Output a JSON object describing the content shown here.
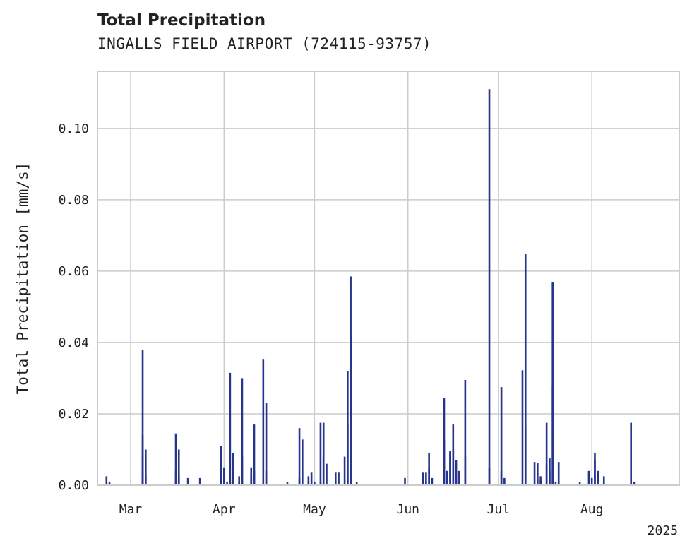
{
  "chart_data": {
    "type": "bar",
    "title": "Total Precipitation",
    "subtitle": "INGALLS FIELD AIRPORT (724115-93757)",
    "ylabel": "Total Precipitation [mm/s]",
    "xlabel": "",
    "year_label": "2025",
    "xlim": [
      "2025-02-18",
      "2025-08-30"
    ],
    "ylim": [
      0,
      0.116
    ],
    "yticks": [
      0.0,
      0.02,
      0.04,
      0.06,
      0.08,
      0.1
    ],
    "ytick_labels": [
      "0.00",
      "0.02",
      "0.04",
      "0.06",
      "0.08",
      "0.10"
    ],
    "xticks": [
      "2025-03-01",
      "2025-04-01",
      "2025-05-01",
      "2025-06-01",
      "2025-07-01",
      "2025-08-01"
    ],
    "xtick_labels": [
      "Mar",
      "Apr",
      "May",
      "Jun",
      "Jul",
      "Aug"
    ],
    "grid": true,
    "color": "#26348b",
    "points": [
      [
        "2025-02-21",
        0.001
      ],
      [
        "2025-02-21",
        0.0025
      ],
      [
        "2025-02-22",
        0.001
      ],
      [
        "2025-03-05",
        0.002
      ],
      [
        "2025-03-05",
        0.008
      ],
      [
        "2025-03-05",
        0.038
      ],
      [
        "2025-03-05",
        0.014
      ],
      [
        "2025-03-06",
        0.01
      ],
      [
        "2025-03-06",
        0.003
      ],
      [
        "2025-03-16",
        0.001
      ],
      [
        "2025-03-16",
        0.004
      ],
      [
        "2025-03-16",
        0.0145
      ],
      [
        "2025-03-17",
        0.01
      ],
      [
        "2025-03-17",
        0.003
      ],
      [
        "2025-03-20",
        0.002
      ],
      [
        "2025-03-24",
        0.002
      ],
      [
        "2025-03-31",
        0.011
      ],
      [
        "2025-04-01",
        0.005
      ],
      [
        "2025-04-02",
        0.001
      ],
      [
        "2025-04-03",
        0.001
      ],
      [
        "2025-04-03",
        0.0315
      ],
      [
        "2025-04-04",
        0.009
      ],
      [
        "2025-04-04",
        0.004
      ],
      [
        "2025-04-04",
        0.003
      ],
      [
        "2025-04-06",
        0.0025
      ],
      [
        "2025-04-06",
        0.001
      ],
      [
        "2025-04-07",
        0.03
      ],
      [
        "2025-04-07",
        0.008
      ],
      [
        "2025-04-07",
        0.001
      ],
      [
        "2025-04-10",
        0.005
      ],
      [
        "2025-04-10",
        0.003
      ],
      [
        "2025-04-11",
        0.017
      ],
      [
        "2025-04-11",
        0.004
      ],
      [
        "2025-04-14",
        0.0352
      ],
      [
        "2025-04-15",
        0.023
      ],
      [
        "2025-04-15",
        0.004
      ],
      [
        "2025-04-22",
        0.0008
      ],
      [
        "2025-04-26",
        0.016
      ],
      [
        "2025-04-26",
        0.002
      ],
      [
        "2025-04-27",
        0.0128
      ],
      [
        "2025-04-29",
        0.001
      ],
      [
        "2025-04-29",
        0.0025
      ],
      [
        "2025-04-30",
        0.0035
      ],
      [
        "2025-05-01",
        0.001
      ],
      [
        "2025-05-03",
        0.001
      ],
      [
        "2025-05-03",
        0.0175
      ],
      [
        "2025-05-04",
        0.0175
      ],
      [
        "2025-05-04",
        0.008
      ],
      [
        "2025-05-05",
        0.006
      ],
      [
        "2025-05-08",
        0.0035
      ],
      [
        "2025-05-09",
        0.0035
      ],
      [
        "2025-05-11",
        0.008
      ],
      [
        "2025-05-12",
        0.017
      ],
      [
        "2025-05-12",
        0.032
      ],
      [
        "2025-05-13",
        0.0585
      ],
      [
        "2025-05-13",
        0.042
      ],
      [
        "2025-05-15",
        0.0008
      ],
      [
        "2025-05-31",
        0.002
      ],
      [
        "2025-06-06",
        0.0035
      ],
      [
        "2025-06-07",
        0.0035
      ],
      [
        "2025-06-07",
        0.001
      ],
      [
        "2025-06-08",
        0.005
      ],
      [
        "2025-06-08",
        0.009
      ],
      [
        "2025-06-09",
        0.002
      ],
      [
        "2025-06-13",
        0.0125
      ],
      [
        "2025-06-13",
        0.0245
      ],
      [
        "2025-06-14",
        0.004
      ],
      [
        "2025-06-15",
        0.009
      ],
      [
        "2025-06-15",
        0.0095
      ],
      [
        "2025-06-16",
        0.017
      ],
      [
        "2025-06-16",
        0.01
      ],
      [
        "2025-06-17",
        0.004
      ],
      [
        "2025-06-17",
        0.007
      ],
      [
        "2025-06-18",
        0.004
      ],
      [
        "2025-06-20",
        0.008
      ],
      [
        "2025-06-20",
        0.0295
      ],
      [
        "2025-06-28",
        0.111
      ],
      [
        "2025-06-28",
        0.005
      ],
      [
        "2025-07-02",
        0.004
      ],
      [
        "2025-07-02",
        0.0275
      ],
      [
        "2025-07-03",
        0.002
      ],
      [
        "2025-07-09",
        0.0322
      ],
      [
        "2025-07-10",
        0.0648
      ],
      [
        "2025-07-10",
        0.016
      ],
      [
        "2025-07-13",
        0.0065
      ],
      [
        "2025-07-14",
        0.0062
      ],
      [
        "2025-07-15",
        0.0025
      ],
      [
        "2025-07-15",
        0.0015
      ],
      [
        "2025-07-17",
        0.0175
      ],
      [
        "2025-07-17",
        0.006
      ],
      [
        "2025-07-18",
        0.0075
      ],
      [
        "2025-07-18",
        0.004
      ],
      [
        "2025-07-19",
        0.028
      ],
      [
        "2025-07-19",
        0.057
      ],
      [
        "2025-07-20",
        0.001
      ],
      [
        "2025-07-21",
        0.0008
      ],
      [
        "2025-07-21",
        0.0065
      ],
      [
        "2025-07-28",
        0.0008
      ],
      [
        "2025-07-31",
        0.004
      ],
      [
        "2025-08-01",
        0.002
      ],
      [
        "2025-08-02",
        0.009
      ],
      [
        "2025-08-02",
        0.007
      ],
      [
        "2025-08-03",
        0.004
      ],
      [
        "2025-08-03",
        0.002
      ],
      [
        "2025-08-05",
        0.0025
      ],
      [
        "2025-08-05",
        0.001
      ],
      [
        "2025-08-14",
        0.0175
      ],
      [
        "2025-08-15",
        0.0008
      ]
    ]
  }
}
